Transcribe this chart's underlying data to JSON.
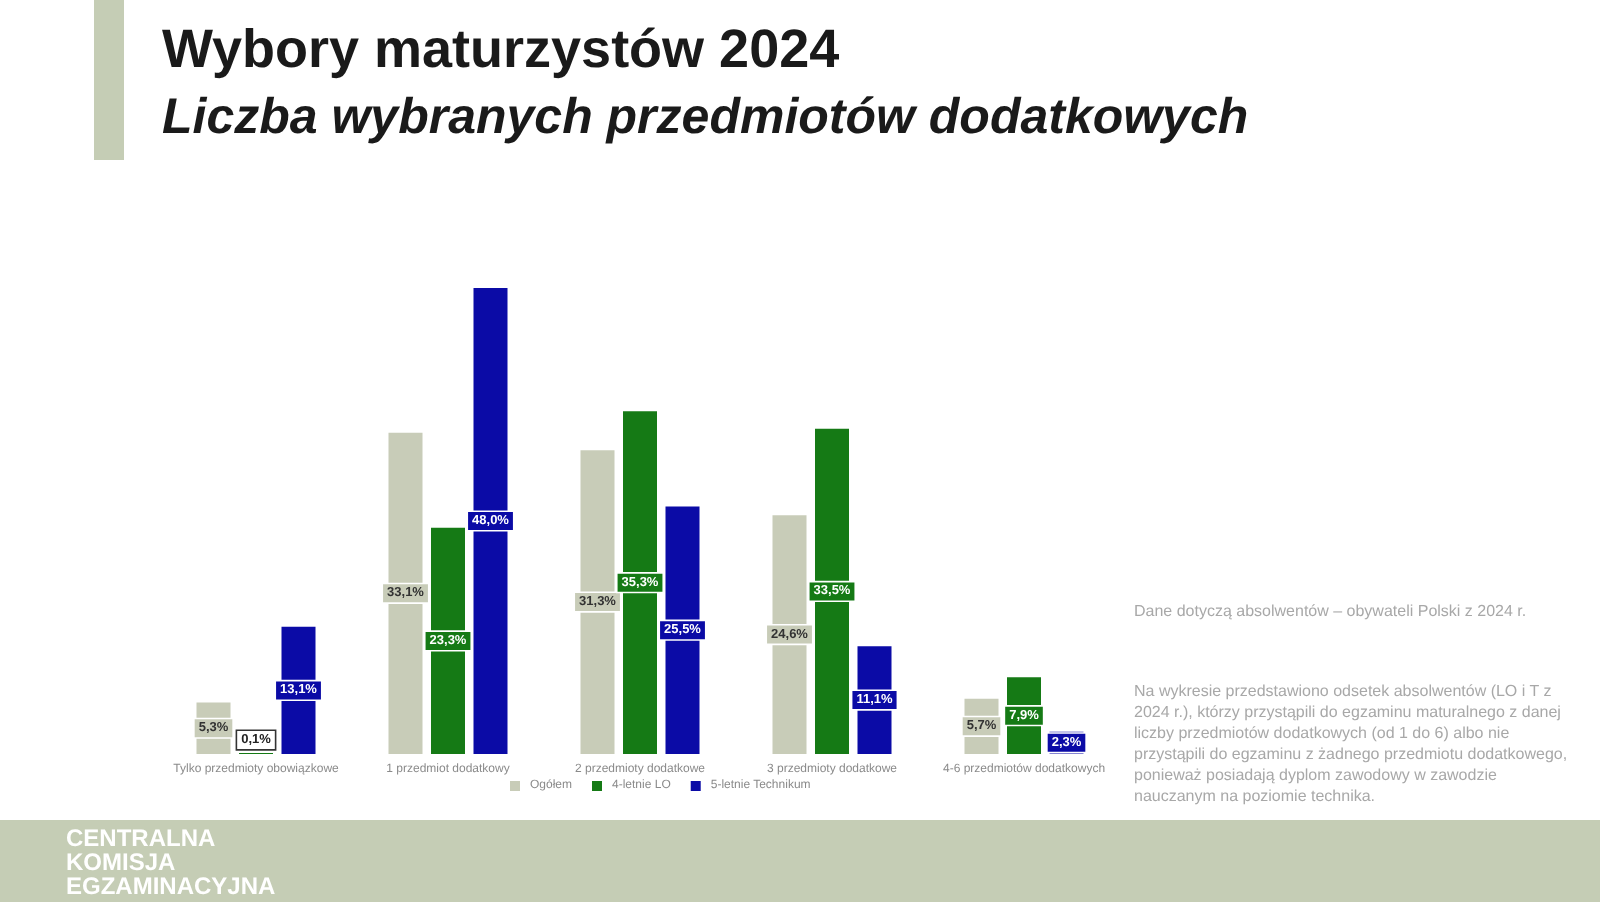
{
  "chart_data": {
    "type": "bar",
    "title": "Wybory maturzystów 2024",
    "subtitle": "Liczba wybranych przedmiotów dodatkowych",
    "categories": [
      "Tylko przedmioty obowiązkowe",
      "1 przedmiot dodatkowy",
      "2 przedmioty dodatkowe",
      "3 przedmioty dodatkowe",
      "4-6 przedmiotów dodatkowych"
    ],
    "series": [
      {
        "name": "Ogółem",
        "color": "#c8ccb8",
        "values": [
          5.3,
          33.1,
          31.3,
          24.6,
          5.7
        ],
        "value_labels": [
          "5,3%",
          "33,1%",
          "31,3%",
          "24,6%",
          "5,7%"
        ]
      },
      {
        "name": "4-letnie LO",
        "color": "#157a15",
        "values": [
          0.1,
          23.3,
          35.3,
          33.5,
          7.9
        ],
        "value_labels": [
          "0,1%",
          "23,3%",
          "35,3%",
          "33,5%",
          "7,9%"
        ]
      },
      {
        "name": "5-letnie Technikum",
        "color": "#0b0ba6",
        "values": [
          13.1,
          48.0,
          25.5,
          11.1,
          2.3
        ],
        "value_labels": [
          "13,1%",
          "48,0%",
          "25,5%",
          "11,1%",
          "2,3%"
        ]
      }
    ],
    "legend": "bottom",
    "tick_labels": "x",
    "annotations": [
      "Dane dotyczą absolwentów – obywateli Polski z 2024 r.",
      "Na wykresie przedstawiono odsetek absolwentów (LO i T z 2024 r.), którzy przystąpili do egzaminu maturalnego z danej liczby przedmiotów dodatkowych (od 1 do 6) albo nie przystąpili do egzaminu z żadnego przedmiotu dodatkowego, ponieważ posiadają dyplom zawodowy w zawodzie nauczanym na poziomie technika.",
      "CENTRALNA KOMISJA EGZAMINACYJNA"
    ]
  }
}
